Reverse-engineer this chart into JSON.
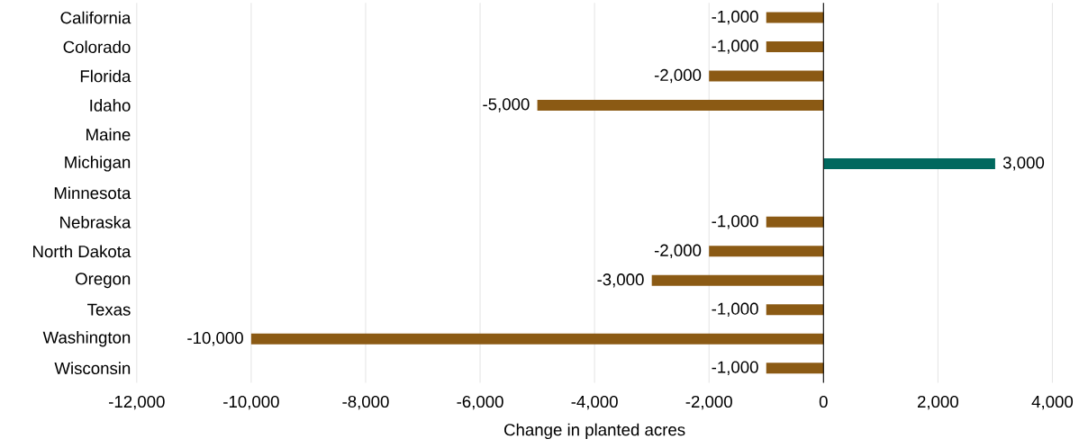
{
  "chart_data": {
    "type": "bar",
    "orientation": "horizontal",
    "categories": [
      "California",
      "Colorado",
      "Florida",
      "Idaho",
      "Maine",
      "Michigan",
      "Minnesota",
      "Nebraska",
      "North Dakota",
      "Oregon",
      "Texas",
      "Washington",
      "Wisconsin"
    ],
    "values": [
      -1000,
      -1000,
      -2000,
      -5000,
      null,
      3000,
      null,
      -1000,
      -2000,
      -3000,
      -1000,
      -10000,
      -1000
    ],
    "value_labels": [
      "-1,000",
      "-1,000",
      "-2,000",
      "-5,000",
      null,
      "3,000",
      null,
      "-1,000",
      "-2,000",
      "-3,000",
      "-1,000",
      "-10,000",
      "-1,000"
    ],
    "colors": [
      "#8b5a14",
      "#8b5a14",
      "#8b5a14",
      "#8b5a14",
      "#8b5a14",
      "#00685e",
      "#8b5a14",
      "#8b5a14",
      "#8b5a14",
      "#8b5a14",
      "#8b5a14",
      "#8b5a14",
      "#8b5a14"
    ],
    "xlabel": "Change in planted acres",
    "xlim": [
      -12000,
      4000
    ],
    "xticks": [
      {
        "value": -12000,
        "label": "-12,000"
      },
      {
        "value": -10000,
        "label": "-10,000"
      },
      {
        "value": -8000,
        "label": "-8,000"
      },
      {
        "value": -6000,
        "label": "-6,000"
      },
      {
        "value": -4000,
        "label": "-4,000"
      },
      {
        "value": -2000,
        "label": "-2,000"
      },
      {
        "value": 0,
        "label": "0"
      },
      {
        "value": 2000,
        "label": "2,000"
      },
      {
        "value": 4000,
        "label": "4,000"
      }
    ],
    "grid": "x"
  }
}
